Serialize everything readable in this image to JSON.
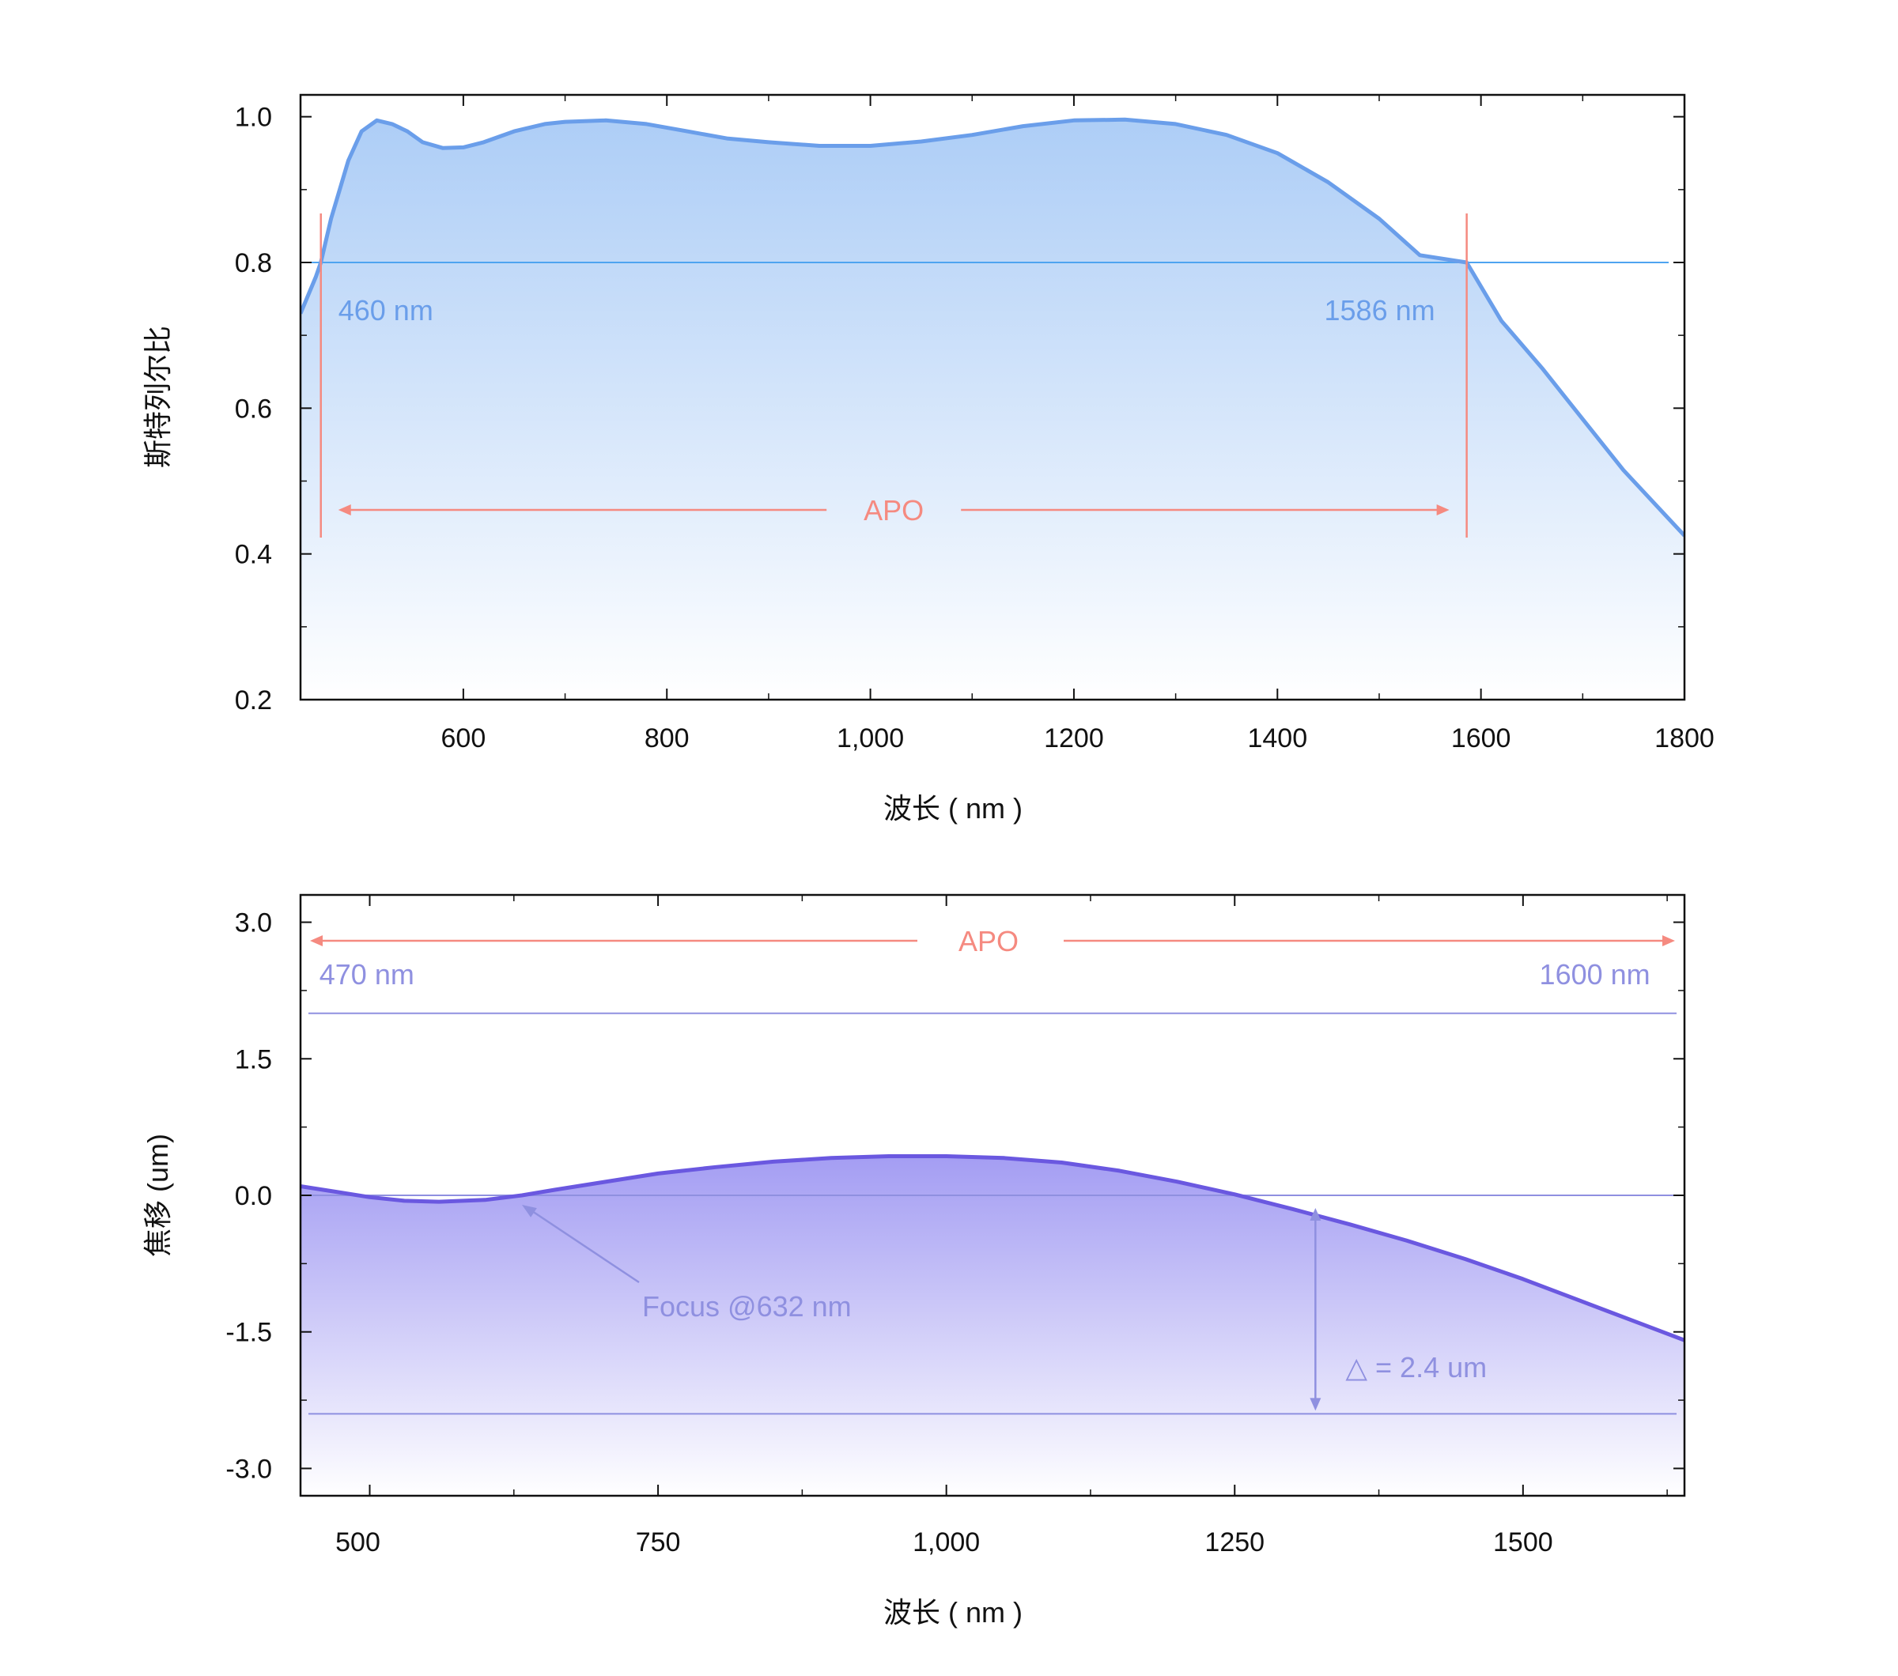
{
  "colors": {
    "top_curve": "#6a9eea",
    "top_fill": "#9fc4f5",
    "top_hline": "#4ea4f0",
    "top_label": "#6a9eea",
    "apo": "#f58a80",
    "bottom_curve": "#6a58e0",
    "bottom_fill": "#9f98f2",
    "bottom_line": "#8f90e0",
    "bottom_label": "#8f90e0",
    "axis": "#111111"
  },
  "chart_data": [
    {
      "type": "area",
      "title": "",
      "xlabel": "波长 ( nm )",
      "ylabel": "斯特列尔比",
      "xlim": [
        440,
        1800
      ],
      "ylim": [
        0.2,
        1.0
      ],
      "xticks": [
        600,
        800,
        1000,
        1200,
        1400,
        1600,
        1800
      ],
      "xtick_labels": [
        "600",
        "800",
        "1,000",
        "1200",
        "1400",
        "1600",
        "1800"
      ],
      "yticks": [
        0.2,
        0.4,
        0.6,
        0.8,
        1.0
      ],
      "ytick_labels": [
        "0.2",
        "0.4",
        "0.6",
        "0.8",
        "1.0"
      ],
      "series": [
        {
          "name": "strehl",
          "x": [
            440,
            455,
            460,
            470,
            487,
            500,
            515,
            530,
            545,
            560,
            580,
            600,
            620,
            650,
            680,
            700,
            740,
            780,
            820,
            860,
            900,
            950,
            1000,
            1050,
            1100,
            1150,
            1200,
            1250,
            1300,
            1350,
            1400,
            1450,
            1500,
            1540,
            1586,
            1620,
            1660,
            1700,
            1740,
            1780,
            1800
          ],
          "y": [
            0.73,
            0.78,
            0.8,
            0.86,
            0.94,
            0.98,
            0.995,
            0.99,
            0.98,
            0.965,
            0.957,
            0.958,
            0.965,
            0.98,
            0.99,
            0.993,
            0.995,
            0.99,
            0.98,
            0.97,
            0.965,
            0.96,
            0.96,
            0.966,
            0.975,
            0.987,
            0.995,
            0.996,
            0.99,
            0.975,
            0.95,
            0.91,
            0.86,
            0.81,
            0.8,
            0.72,
            0.655,
            0.585,
            0.515,
            0.455,
            0.425
          ]
        }
      ],
      "reference_line": 0.8,
      "markers": [
        {
          "x": 460,
          "label": "460 nm"
        },
        {
          "x": 1586,
          "label": "1586 nm"
        }
      ],
      "band_label": "APO"
    },
    {
      "type": "area",
      "title": "",
      "xlabel": "波长 ( nm )",
      "ylabel": "焦移 (um)",
      "xlim": [
        440,
        1640
      ],
      "ylim": [
        -3.0,
        3.0
      ],
      "xticks": [
        500,
        750,
        1000,
        1250,
        1500
      ],
      "xtick_labels": [
        "500",
        "750",
        "1,000",
        "1250",
        "1500"
      ],
      "yticks": [
        -3.0,
        -1.5,
        0.0,
        1.5,
        3.0
      ],
      "ytick_labels": [
        "-3.0",
        "-1.5",
        "0.0",
        "1.5",
        "3.0"
      ],
      "series": [
        {
          "name": "focal_shift",
          "x": [
            440,
            470,
            500,
            530,
            560,
            600,
            632,
            660,
            700,
            750,
            800,
            850,
            900,
            950,
            1000,
            1050,
            1100,
            1150,
            1200,
            1250,
            1300,
            1350,
            1400,
            1450,
            1500,
            1550,
            1600
          ],
          "y": [
            0.1,
            0.04,
            -0.02,
            -0.06,
            -0.07,
            -0.05,
            0.0,
            0.06,
            0.14,
            0.24,
            0.31,
            0.37,
            0.41,
            0.43,
            0.43,
            0.41,
            0.36,
            0.27,
            0.15,
            0.01,
            -0.15,
            -0.32,
            -0.5,
            -0.7,
            -0.92,
            -1.16,
            -1.4
          ]
        }
      ],
      "reference_lines": [
        2.0,
        0.0,
        -2.4
      ],
      "markers": [
        {
          "x": 470,
          "label": "470 nm"
        },
        {
          "x": 1600,
          "label": "1600 nm"
        }
      ],
      "band_label": "APO",
      "focus_annotation": {
        "x": 632,
        "y": 0.0,
        "label": "Focus @632 nm"
      },
      "delta_annotation": {
        "x": 1320,
        "y_top": 0.0,
        "y_bottom": -2.4,
        "label": "△ = 2.4 um"
      }
    }
  ]
}
